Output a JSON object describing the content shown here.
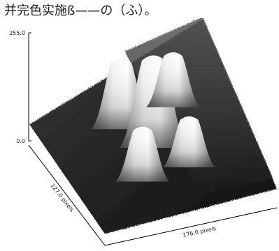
{
  "caption": "并完色实施ß——の（ふ）。",
  "chart_data": {
    "type": "surface",
    "title": "",
    "z_axis": {
      "ticks": [
        "255.0",
        "0.0"
      ],
      "range": [
        0,
        255
      ]
    },
    "x_axis": {
      "label": "127.0 pixels",
      "range": [
        0,
        127
      ]
    },
    "y_axis": {
      "label": "176.0 pixels",
      "range": [
        0,
        176
      ]
    },
    "peaks": [
      {
        "name": "",
        "x": 0.5,
        "y": 0.5,
        "height": 255
      },
      {
        "name": "",
        "x": 0.3,
        "y": 0.4,
        "height": 200
      },
      {
        "name": "",
        "x": 0.3,
        "y": 0.7,
        "height": 160
      },
      {
        "name": "",
        "x": 0.7,
        "y": 0.35,
        "height": 160
      },
      {
        "name": "",
        "x": 0.7,
        "y": 0.62,
        "height": 150
      }
    ],
    "background_level": 60,
    "colormap": "grayscale",
    "grid": false
  }
}
